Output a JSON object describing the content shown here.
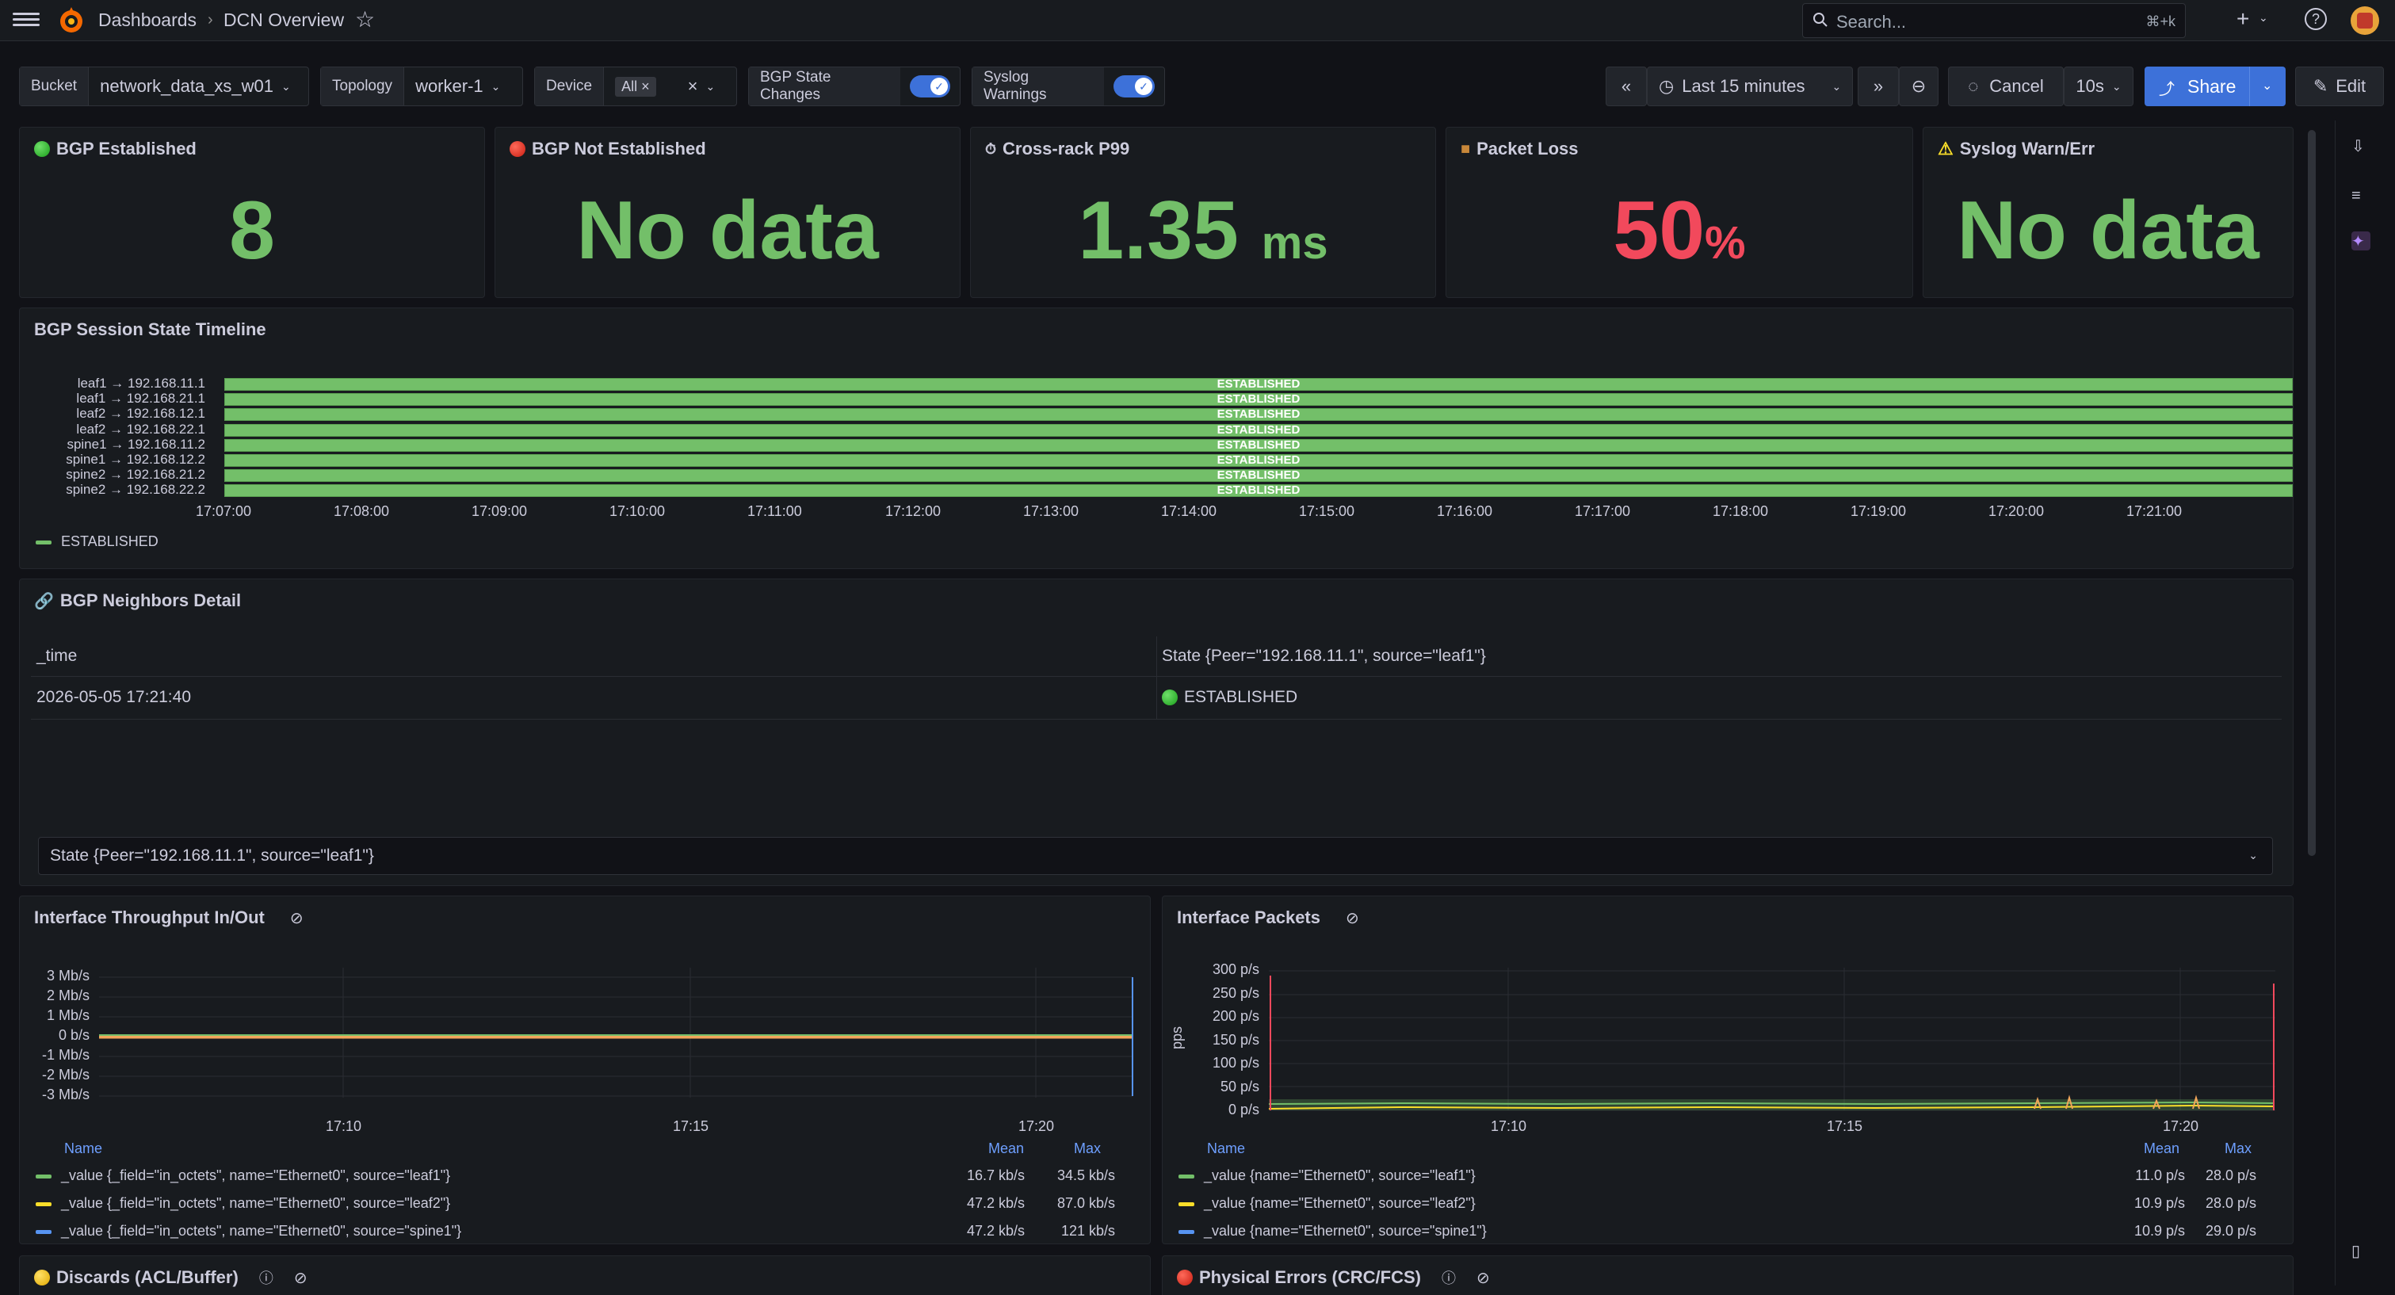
{
  "breadcrumb": {
    "root": "Dashboards",
    "sep": "›",
    "current": "DCN Overview"
  },
  "search": {
    "placeholder": "Search...",
    "shortcut": "⌘+k"
  },
  "variables": {
    "bucket": {
      "label": "Bucket",
      "value": "network_data_xs_w01"
    },
    "topology": {
      "label": "Topology",
      "value": "worker-1"
    },
    "device": {
      "label": "Device",
      "value": "All"
    },
    "bgp_state_changes": {
      "label": "BGP State Changes"
    },
    "syslog_warnings": {
      "label": "Syslog Warnings"
    }
  },
  "time": {
    "range": "Last 15 minutes",
    "cancel": "Cancel",
    "refresh": "10s",
    "share": "Share",
    "edit": "Edit"
  },
  "stats": [
    {
      "title": "BGP Established",
      "value": "8",
      "unit": ""
    },
    {
      "title": "BGP Not Established",
      "value": "No data",
      "unit": ""
    },
    {
      "title": "Cross-rack P99",
      "value": "1.35",
      "unit": "ms"
    },
    {
      "title": "Packet Loss",
      "value": "50",
      "unit": "%"
    },
    {
      "title": "Syslog Warn/Err",
      "value": "No data",
      "unit": ""
    }
  ],
  "timeline": {
    "title": "BGP Session State Timeline",
    "rows": [
      {
        "label": "leaf1 → 192.168.11.1",
        "state": "ESTABLISHED"
      },
      {
        "label": "leaf1 → 192.168.21.1",
        "state": "ESTABLISHED"
      },
      {
        "label": "leaf2 → 192.168.12.1",
        "state": "ESTABLISHED"
      },
      {
        "label": "leaf2 → 192.168.22.1",
        "state": "ESTABLISHED"
      },
      {
        "label": "spine1 → 192.168.11.2",
        "state": "ESTABLISHED"
      },
      {
        "label": "spine1 → 192.168.12.2",
        "state": "ESTABLISHED"
      },
      {
        "label": "spine2 → 192.168.21.2",
        "state": "ESTABLISHED"
      },
      {
        "label": "spine2 → 192.168.22.2",
        "state": "ESTABLISHED"
      }
    ],
    "ticks": [
      "17:07:00",
      "17:08:00",
      "17:09:00",
      "17:10:00",
      "17:11:00",
      "17:12:00",
      "17:13:00",
      "17:14:00",
      "17:15:00",
      "17:16:00",
      "17:17:00",
      "17:18:00",
      "17:19:00",
      "17:20:00",
      "17:21:00"
    ],
    "legend": "ESTABLISHED",
    "color": "#73bf69"
  },
  "neighbors": {
    "title": "BGP Neighbors Detail",
    "col_time": "_time",
    "col_state": "State {Peer=\"192.168.11.1\", source=\"leaf1\"}",
    "row_time": "2026-05-05 17:21:40",
    "row_state": "ESTABLISHED",
    "select_value": "State {Peer=\"192.168.11.1\", source=\"leaf1\"}"
  },
  "throughput": {
    "title": "Interface Throughput In/Out",
    "yticks": [
      "3 Mb/s",
      "2 Mb/s",
      "1 Mb/s",
      "0 b/s",
      "-1 Mb/s",
      "-2 Mb/s",
      "-3 Mb/s"
    ],
    "xticks": [
      "17:10",
      "17:15",
      "17:20"
    ],
    "legend_name": "Name",
    "legend_mean": "Mean",
    "legend_max": "Max",
    "rows": [
      {
        "name": "_value {_field=\"in_octets\", name=\"Ethernet0\", source=\"leaf1\"}",
        "mean": "16.7 kb/s",
        "max": "34.5 kb/s",
        "color": "#73bf69"
      },
      {
        "name": "_value {_field=\"in_octets\", name=\"Ethernet0\", source=\"leaf2\"}",
        "mean": "47.2 kb/s",
        "max": "87.0 kb/s",
        "color": "#fade2a"
      },
      {
        "name": "_value {_field=\"in_octets\", name=\"Ethernet0\", source=\"spine1\"}",
        "mean": "47.2 kb/s",
        "max": "121 kb/s",
        "color": "#5794f2"
      }
    ]
  },
  "packets": {
    "title": "Interface Packets",
    "ylabel": "pps",
    "yticks": [
      "300 p/s",
      "250 p/s",
      "200 p/s",
      "150 p/s",
      "100 p/s",
      "50 p/s",
      "0 p/s"
    ],
    "xticks": [
      "17:10",
      "17:15",
      "17:20"
    ],
    "legend_name": "Name",
    "legend_mean": "Mean",
    "legend_max": "Max",
    "rows": [
      {
        "name": "_value {name=\"Ethernet0\", source=\"leaf1\"}",
        "mean": "11.0 p/s",
        "max": "28.0 p/s",
        "color": "#73bf69"
      },
      {
        "name": "_value {name=\"Ethernet0\", source=\"leaf2\"}",
        "mean": "10.9 p/s",
        "max": "28.0 p/s",
        "color": "#fade2a"
      },
      {
        "name": "_value {name=\"Ethernet0\", source=\"spine1\"}",
        "mean": "10.9 p/s",
        "max": "29.0 p/s",
        "color": "#5794f2"
      }
    ]
  },
  "bottom": {
    "discards": "Discards (ACL/Buffer)",
    "errors": "Physical Errors (CRC/FCS)"
  },
  "colors": {
    "accent": "#3d71d9",
    "green": "#73bf69",
    "red": "#f2495c"
  }
}
